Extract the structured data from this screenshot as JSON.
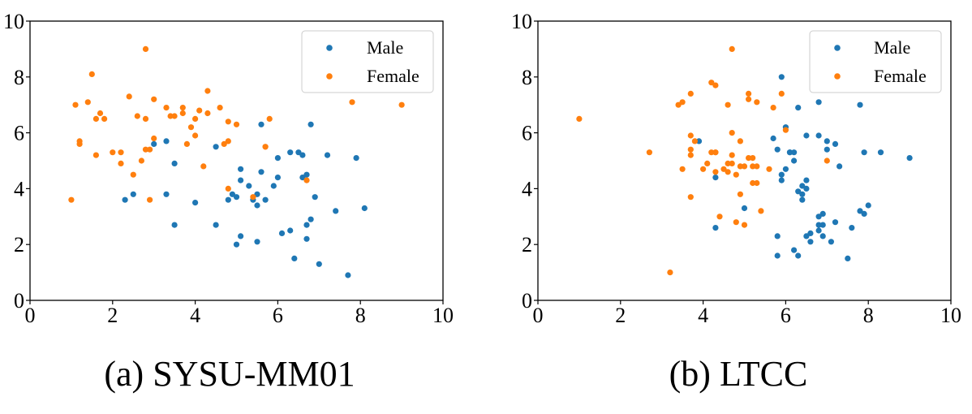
{
  "colors": {
    "male": "#1f77b4",
    "female": "#ff7f0e"
  },
  "chart_data": [
    {
      "type": "scatter",
      "title": "(a) SYSU-MM01",
      "xlabel": "",
      "ylabel": "",
      "xlim": [
        0,
        10
      ],
      "ylim": [
        0,
        10
      ],
      "xticks": [
        0,
        2,
        4,
        6,
        8,
        10
      ],
      "yticks": [
        0,
        2,
        4,
        6,
        8,
        10
      ],
      "grid": false,
      "legend_position": "top-right",
      "series": [
        {
          "name": "Male",
          "points": [
            [
              3.0,
              5.6
            ],
            [
              3.3,
              5.7
            ],
            [
              3.5,
              4.9
            ],
            [
              3.3,
              3.8
            ],
            [
              2.5,
              3.8
            ],
            [
              2.3,
              3.6
            ],
            [
              3.5,
              2.7
            ],
            [
              4.0,
              3.5
            ],
            [
              4.5,
              2.7
            ],
            [
              4.5,
              5.5
            ],
            [
              4.8,
              3.6
            ],
            [
              4.9,
              3.8
            ],
            [
              5.0,
              3.7
            ],
            [
              5.1,
              4.7
            ],
            [
              5.1,
              4.3
            ],
            [
              5.0,
              2.0
            ],
            [
              5.1,
              2.3
            ],
            [
              5.3,
              4.1
            ],
            [
              5.4,
              3.6
            ],
            [
              5.5,
              3.8
            ],
            [
              5.5,
              3.4
            ],
            [
              5.6,
              4.6
            ],
            [
              5.7,
              3.6
            ],
            [
              5.6,
              6.3
            ],
            [
              5.9,
              4.1
            ],
            [
              6.0,
              4.4
            ],
            [
              6.0,
              5.1
            ],
            [
              5.5,
              2.1
            ],
            [
              6.1,
              2.4
            ],
            [
              6.3,
              5.3
            ],
            [
              6.3,
              2.5
            ],
            [
              6.4,
              1.5
            ],
            [
              6.5,
              5.3
            ],
            [
              6.6,
              4.4
            ],
            [
              6.6,
              5.2
            ],
            [
              6.8,
              6.3
            ],
            [
              6.7,
              4.5
            ],
            [
              6.7,
              2.7
            ],
            [
              6.8,
              2.9
            ],
            [
              6.7,
              2.2
            ],
            [
              6.9,
              3.7
            ],
            [
              7.0,
              1.3
            ],
            [
              7.2,
              5.2
            ],
            [
              7.4,
              3.2
            ],
            [
              7.7,
              0.9
            ],
            [
              7.9,
              5.1
            ],
            [
              8.1,
              3.3
            ]
          ]
        },
        {
          "name": "Female",
          "points": [
            [
              1.0,
              3.6
            ],
            [
              1.1,
              7.0
            ],
            [
              1.2,
              5.7
            ],
            [
              1.2,
              5.6
            ],
            [
              1.4,
              7.1
            ],
            [
              1.5,
              8.1
            ],
            [
              1.6,
              6.5
            ],
            [
              1.6,
              5.2
            ],
            [
              1.7,
              6.7
            ],
            [
              1.8,
              6.5
            ],
            [
              2.0,
              5.3
            ],
            [
              2.2,
              5.3
            ],
            [
              2.2,
              4.9
            ],
            [
              2.4,
              7.3
            ],
            [
              2.5,
              4.5
            ],
            [
              2.6,
              6.6
            ],
            [
              2.7,
              5.0
            ],
            [
              2.8,
              6.5
            ],
            [
              2.8,
              5.4
            ],
            [
              2.9,
              5.4
            ],
            [
              2.8,
              9.0
            ],
            [
              2.9,
              3.6
            ],
            [
              3.0,
              7.2
            ],
            [
              3.0,
              5.8
            ],
            [
              3.3,
              6.9
            ],
            [
              3.4,
              6.6
            ],
            [
              3.5,
              6.6
            ],
            [
              3.7,
              6.9
            ],
            [
              3.7,
              6.7
            ],
            [
              3.8,
              5.6
            ],
            [
              3.9,
              6.2
            ],
            [
              4.0,
              5.9
            ],
            [
              4.0,
              6.5
            ],
            [
              4.1,
              6.8
            ],
            [
              4.2,
              4.8
            ],
            [
              4.3,
              7.5
            ],
            [
              4.3,
              6.7
            ],
            [
              4.6,
              6.9
            ],
            [
              4.7,
              5.6
            ],
            [
              4.8,
              5.7
            ],
            [
              4.8,
              6.4
            ],
            [
              4.8,
              4.0
            ],
            [
              5.0,
              6.3
            ],
            [
              5.4,
              3.7
            ],
            [
              5.7,
              5.5
            ],
            [
              5.8,
              6.5
            ],
            [
              5.7,
              5.5
            ],
            [
              6.7,
              4.3
            ],
            [
              7.8,
              7.1
            ],
            [
              9.0,
              7.0
            ]
          ]
        }
      ]
    },
    {
      "type": "scatter",
      "title": "(b) LTCC",
      "xlabel": "",
      "ylabel": "",
      "xlim": [
        0,
        10
      ],
      "ylim": [
        0,
        10
      ],
      "xticks": [
        0,
        2,
        4,
        6,
        8,
        10
      ],
      "yticks": [
        0,
        2,
        4,
        6,
        8,
        10
      ],
      "grid": false,
      "legend_position": "top-right",
      "series": [
        {
          "name": "Male",
          "points": [
            [
              3.9,
              5.7
            ],
            [
              4.3,
              4.4
            ],
            [
              4.3,
              2.6
            ],
            [
              5.0,
              3.3
            ],
            [
              5.7,
              5.8
            ],
            [
              5.8,
              1.6
            ],
            [
              5.8,
              5.4
            ],
            [
              5.8,
              2.3
            ],
            [
              5.9,
              4.5
            ],
            [
              5.9,
              4.3
            ],
            [
              5.9,
              8.0
            ],
            [
              6.0,
              4.7
            ],
            [
              6.0,
              6.2
            ],
            [
              6.1,
              5.3
            ],
            [
              6.1,
              5.3
            ],
            [
              6.2,
              5.0
            ],
            [
              6.2,
              5.3
            ],
            [
              6.2,
              1.8
            ],
            [
              6.3,
              6.9
            ],
            [
              6.3,
              1.6
            ],
            [
              6.3,
              3.9
            ],
            [
              6.4,
              4.1
            ],
            [
              6.4,
              3.6
            ],
            [
              6.4,
              3.8
            ],
            [
              6.5,
              4.0
            ],
            [
              6.5,
              4.3
            ],
            [
              6.5,
              2.3
            ],
            [
              6.5,
              5.9
            ],
            [
              6.6,
              2.1
            ],
            [
              6.6,
              2.4
            ],
            [
              6.8,
              3.0
            ],
            [
              6.8,
              5.9
            ],
            [
              6.8,
              7.1
            ],
            [
              6.8,
              2.7
            ],
            [
              6.8,
              2.5
            ],
            [
              6.9,
              2.3
            ],
            [
              6.9,
              2.7
            ],
            [
              6.9,
              3.1
            ],
            [
              7.0,
              5.7
            ],
            [
              7.0,
              5.4
            ],
            [
              7.1,
              2.1
            ],
            [
              7.2,
              5.6
            ],
            [
              7.2,
              2.8
            ],
            [
              7.3,
              4.8
            ],
            [
              7.5,
              1.5
            ],
            [
              7.6,
              2.6
            ],
            [
              7.8,
              3.2
            ],
            [
              7.8,
              7.0
            ],
            [
              7.9,
              3.1
            ],
            [
              7.9,
              5.3
            ],
            [
              8.0,
              3.4
            ],
            [
              8.3,
              5.3
            ],
            [
              9.0,
              5.1
            ]
          ]
        },
        {
          "name": "Female",
          "points": [
            [
              1.0,
              6.5
            ],
            [
              2.7,
              5.3
            ],
            [
              3.2,
              1.0
            ],
            [
              3.4,
              7.0
            ],
            [
              3.5,
              7.1
            ],
            [
              3.5,
              4.7
            ],
            [
              3.7,
              5.9
            ],
            [
              3.7,
              5.4
            ],
            [
              3.7,
              5.2
            ],
            [
              3.7,
              3.7
            ],
            [
              3.7,
              7.4
            ],
            [
              3.8,
              5.7
            ],
            [
              4.0,
              4.7
            ],
            [
              4.1,
              4.9
            ],
            [
              4.2,
              7.8
            ],
            [
              4.2,
              5.3
            ],
            [
              4.3,
              5.3
            ],
            [
              4.3,
              4.6
            ],
            [
              4.3,
              5.3
            ],
            [
              4.3,
              7.7
            ],
            [
              4.4,
              3.0
            ],
            [
              4.5,
              4.7
            ],
            [
              4.6,
              4.9
            ],
            [
              4.6,
              7.0
            ],
            [
              4.6,
              4.6
            ],
            [
              4.7,
              5.2
            ],
            [
              4.7,
              9.0
            ],
            [
              4.7,
              6.0
            ],
            [
              4.7,
              4.9
            ],
            [
              4.8,
              4.5
            ],
            [
              4.8,
              2.8
            ],
            [
              4.9,
              5.7
            ],
            [
              4.9,
              4.8
            ],
            [
              4.9,
              3.8
            ],
            [
              5.0,
              4.8
            ],
            [
              5.0,
              2.7
            ],
            [
              5.1,
              7.4
            ],
            [
              5.1,
              7.2
            ],
            [
              5.1,
              5.1
            ],
            [
              5.2,
              4.2
            ],
            [
              5.2,
              5.1
            ],
            [
              5.2,
              4.8
            ],
            [
              5.3,
              7.1
            ],
            [
              5.3,
              4.8
            ],
            [
              5.3,
              4.2
            ],
            [
              5.4,
              3.2
            ],
            [
              5.6,
              4.7
            ],
            [
              5.7,
              6.9
            ],
            [
              5.9,
              7.4
            ],
            [
              6.0,
              6.1
            ],
            [
              7.0,
              5.0
            ]
          ]
        }
      ]
    }
  ]
}
